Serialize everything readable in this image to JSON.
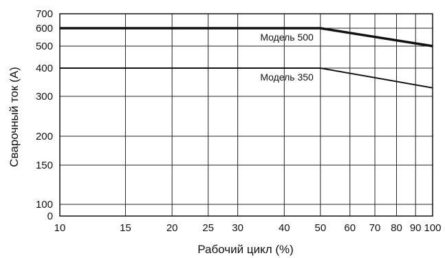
{
  "chart_data": {
    "type": "line",
    "title": "",
    "xlabel": "Рабочий цикл (%)",
    "ylabel": "Сварочный ток (А)",
    "x_scale": "log",
    "y_scale": "log",
    "x_ticks": [
      10,
      15,
      20,
      25,
      30,
      40,
      50,
      60,
      70,
      80,
      90,
      100
    ],
    "y_ticks": [
      0,
      100,
      150,
      200,
      300,
      400,
      500,
      600,
      700
    ],
    "xlim": [
      10,
      100
    ],
    "ylim": [
      0,
      700
    ],
    "grid": true,
    "legend": "none",
    "series": [
      {
        "name": "Модель 500",
        "x": [
          10,
          50,
          100
        ],
        "y": [
          600,
          600,
          500
        ],
        "color": "#111111",
        "weight": "thick"
      },
      {
        "name": "Модель 350",
        "x": [
          10,
          50,
          100
        ],
        "y": [
          400,
          400,
          330
        ],
        "color": "#111111",
        "weight": "normal"
      }
    ]
  }
}
